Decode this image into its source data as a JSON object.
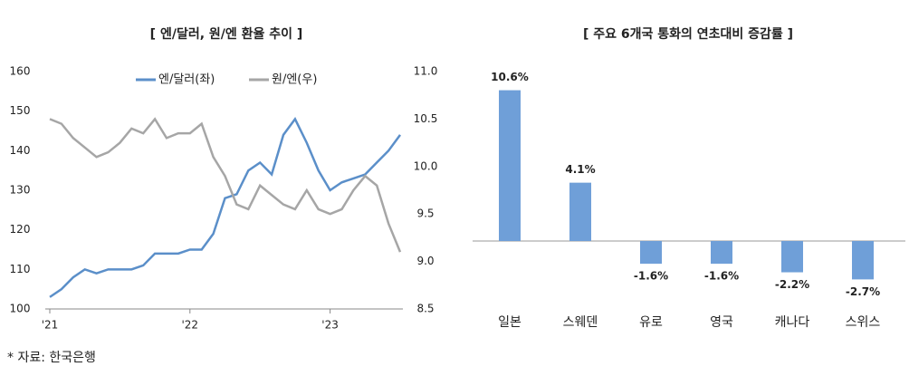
{
  "chart_data": [
    {
      "type": "line",
      "title": "[ 엔/달러, 원/엔 환율 추이 ]",
      "categories": [
        "'21",
        null,
        null,
        null,
        null,
        null,
        null,
        null,
        null,
        null,
        null,
        null,
        "'22",
        null,
        null,
        null,
        null,
        null,
        null,
        null,
        null,
        null,
        null,
        null,
        "'23",
        null,
        null,
        null,
        null,
        null,
        null
      ],
      "series": [
        {
          "name": "엔/달러(좌)",
          "color": "#5b8fc9",
          "values": [
            103,
            105,
            108,
            110,
            109,
            110,
            110,
            110,
            111,
            114,
            114,
            114,
            115,
            115,
            119,
            128,
            129,
            135,
            137,
            134,
            144,
            148,
            142,
            135,
            130,
            132,
            133,
            134,
            137,
            140,
            144
          ]
        },
        {
          "name": "원/엔(우)",
          "color": "#a6a6a6",
          "axis": "y2",
          "values": [
            10.5,
            10.45,
            10.3,
            10.2,
            10.1,
            10.15,
            10.25,
            10.4,
            10.35,
            10.5,
            10.3,
            10.35,
            10.35,
            10.45,
            10.1,
            9.9,
            9.6,
            9.55,
            9.8,
            9.7,
            9.6,
            9.55,
            9.75,
            9.55,
            9.5,
            9.55,
            9.75,
            9.9,
            9.8,
            9.4,
            9.1
          ]
        }
      ],
      "ylim": [
        100,
        160
      ],
      "yticks": [
        100,
        110,
        120,
        130,
        140,
        150,
        160
      ],
      "y2lim": [
        8.5,
        11.0
      ],
      "y2ticks": [
        8.5,
        {
          "value": 9.0,
          "label": "9.0"
        },
        9.5,
        {
          "value": 10.0,
          "label": "10.0"
        },
        10.5,
        {
          "value": 11.0,
          "label": "11.0"
        }
      ],
      "legend": "top"
    },
    {
      "type": "bar",
      "title": "[ 주요 6개국 통화의 연초대비 증감률 ]",
      "categories": [
        "일본",
        "스웨덴",
        "유로",
        "영국",
        "캐나다",
        "스위스"
      ],
      "values": [
        10.6,
        4.1,
        -1.6,
        -1.6,
        -2.2,
        -2.7
      ],
      "value_labels": [
        "10.6%",
        "4.1%",
        "-1.6%",
        "-1.6%",
        "-2.2%",
        "-2.7%"
      ],
      "color": "#6f9fd8"
    }
  ],
  "footnote": "* 자료: 한국은행"
}
